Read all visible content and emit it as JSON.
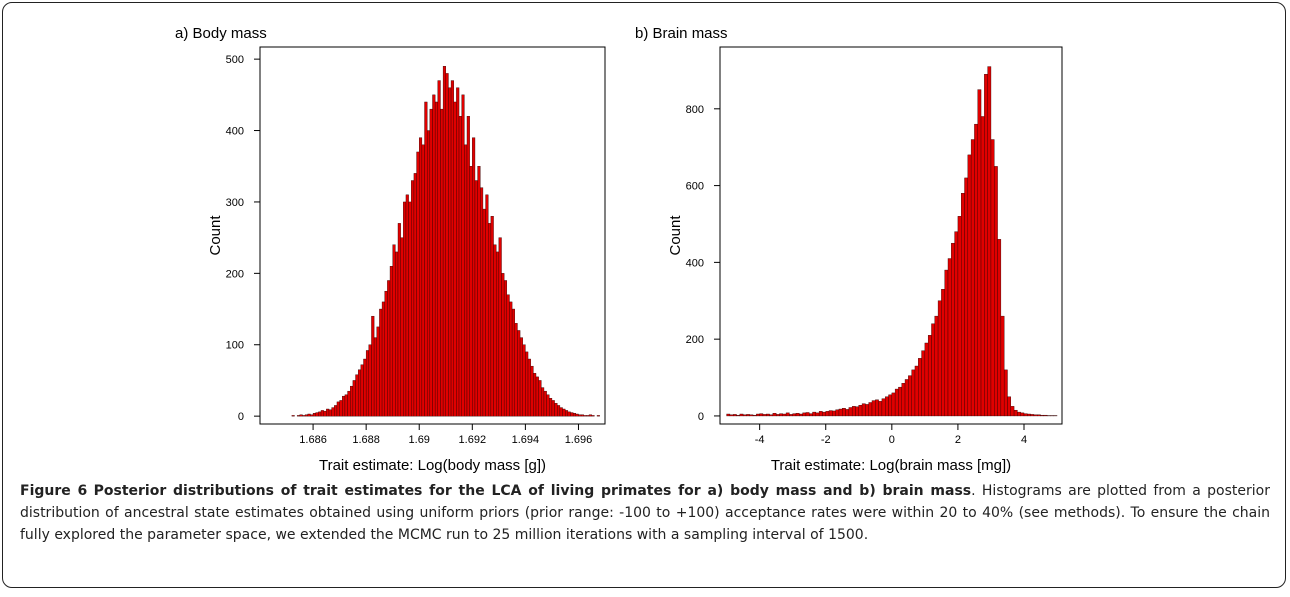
{
  "chart_data": [
    {
      "type": "histogram",
      "title": "a) Body mass",
      "xlabel": "Trait estimate: Log(body mass [g])",
      "ylabel": "Count",
      "color": "#e00000",
      "bins": [
        1.6852,
        1.6853,
        1.6854,
        1.6855,
        1.6856,
        1.6857,
        1.6858,
        1.6859,
        1.686,
        1.6861,
        1.6862,
        1.6863,
        1.6864,
        1.6865,
        1.6866,
        1.6867,
        1.6868,
        1.6869,
        1.687,
        1.6871,
        1.6872,
        1.6873,
        1.6874,
        1.6875,
        1.6876,
        1.6877,
        1.6878,
        1.6879,
        1.688,
        1.6881,
        1.6882,
        1.6883,
        1.6884,
        1.6885,
        1.6886,
        1.6887,
        1.6888,
        1.6889,
        1.689,
        1.6891,
        1.6892,
        1.6893,
        1.6894,
        1.6895,
        1.6896,
        1.6897,
        1.6898,
        1.6899,
        1.69,
        1.6901,
        1.6902,
        1.6903,
        1.6904,
        1.6905,
        1.6906,
        1.6907,
        1.6908,
        1.6909,
        1.691,
        1.6911,
        1.6912,
        1.6913,
        1.6914,
        1.6915,
        1.6916,
        1.6917,
        1.6918,
        1.6919,
        1.692,
        1.6921,
        1.6922,
        1.6923,
        1.6924,
        1.6925,
        1.6926,
        1.6927,
        1.6928,
        1.6929,
        1.693,
        1.6931,
        1.6932,
        1.6933,
        1.6934,
        1.6935,
        1.6936,
        1.6937,
        1.6938,
        1.6939,
        1.694,
        1.6941,
        1.6942,
        1.6943,
        1.6944,
        1.6945,
        1.6946,
        1.6947,
        1.6948,
        1.6949,
        1.695,
        1.6951,
        1.6952,
        1.6953,
        1.6954,
        1.6955,
        1.6956,
        1.6957,
        1.6958,
        1.6959,
        1.696,
        1.6961,
        1.6962,
        1.6963,
        1.6964,
        1.6965,
        1.6966,
        1.6967,
        1.6968
      ],
      "values": [
        1,
        0,
        1,
        2,
        1,
        2,
        3,
        2,
        4,
        5,
        6,
        8,
        7,
        10,
        9,
        12,
        15,
        20,
        22,
        28,
        30,
        35,
        42,
        50,
        58,
        65,
        72,
        80,
        92,
        100,
        140,
        110,
        125,
        150,
        160,
        175,
        190,
        210,
        240,
        230,
        270,
        250,
        300,
        310,
        300,
        330,
        340,
        370,
        390,
        380,
        440,
        400,
        430,
        450,
        440,
        470,
        430,
        490,
        480,
        460,
        470,
        440,
        460,
        420,
        450,
        380,
        420,
        350,
        390,
        330,
        350,
        320,
        290,
        310,
        270,
        280,
        240,
        230,
        250,
        200,
        190,
        170,
        160,
        150,
        130,
        120,
        110,
        100,
        90,
        80,
        70,
        60,
        55,
        50,
        40,
        35,
        30,
        25,
        22,
        18,
        15,
        12,
        10,
        8,
        6,
        5,
        4,
        3,
        2,
        2,
        1,
        1,
        2,
        1,
        0,
        1
      ],
      "xlim": [
        1.684,
        1.697
      ],
      "xticks": [
        1.686,
        1.688,
        1.69,
        1.692,
        1.694,
        1.696
      ],
      "ylim": [
        -11,
        517
      ],
      "yticks": [
        0,
        100,
        200,
        300,
        400,
        500
      ]
    },
    {
      "type": "histogram",
      "title": "b) Brain mass",
      "xlabel": "Trait estimate: Log(brain mass [mg])",
      "ylabel": "Count",
      "color": "#e00000",
      "bins": [
        -5,
        -4.9,
        -4.8,
        -4.7,
        -4.6,
        -4.5,
        -4.4,
        -4.3,
        -4.2,
        -4.1,
        -4,
        -3.9,
        -3.8,
        -3.7,
        -3.6,
        -3.5,
        -3.4,
        -3.3,
        -3.2,
        -3.1,
        -3,
        -2.9,
        -2.8,
        -2.7,
        -2.6,
        -2.5,
        -2.4,
        -2.3,
        -2.2,
        -2.1,
        -2,
        -1.9,
        -1.8,
        -1.7,
        -1.6,
        -1.5,
        -1.4,
        -1.3,
        -1.2,
        -1.1,
        -1,
        -0.9,
        -0.8,
        -0.7,
        -0.6,
        -0.5,
        -0.4,
        -0.3,
        -0.2,
        -0.1,
        0,
        0.1,
        0.2,
        0.3,
        0.4,
        0.5,
        0.6,
        0.7,
        0.8,
        0.9,
        1,
        1.1,
        1.2,
        1.3,
        1.4,
        1.5,
        1.6,
        1.7,
        1.8,
        1.9,
        2,
        2.1,
        2.2,
        2.3,
        2.4,
        2.5,
        2.6,
        2.7,
        2.8,
        2.9,
        3,
        3.1,
        3.2,
        3.3,
        3.4,
        3.5,
        3.6,
        3.7,
        3.8,
        3.9,
        4,
        4.1,
        4.2,
        4.3,
        4.4,
        4.5,
        4.6,
        4.7,
        4.8,
        4.9,
        5
      ],
      "values": [
        5,
        3,
        4,
        2,
        5,
        3,
        4,
        3,
        2,
        5,
        6,
        4,
        5,
        3,
        7,
        4,
        6,
        5,
        8,
        4,
        6,
        7,
        5,
        8,
        9,
        6,
        10,
        8,
        12,
        10,
        12,
        14,
        13,
        16,
        18,
        20,
        17,
        22,
        25,
        24,
        28,
        32,
        30,
        35,
        40,
        42,
        38,
        45,
        50,
        55,
        60,
        70,
        75,
        85,
        95,
        105,
        120,
        130,
        150,
        170,
        190,
        210,
        240,
        260,
        300,
        330,
        380,
        410,
        450,
        480,
        520,
        580,
        620,
        680,
        720,
        760,
        850,
        780,
        890,
        910,
        720,
        650,
        460,
        260,
        120,
        50,
        25,
        15,
        10,
        8,
        6,
        5,
        4,
        3,
        3,
        2,
        2,
        1,
        1,
        1
      ],
      "xlim": [
        -5.2,
        5.15
      ],
      "xticks": [
        -4,
        -2,
        0,
        2,
        4
      ],
      "ylim": [
        -21,
        961
      ],
      "yticks": [
        0,
        200,
        400,
        600,
        800
      ]
    }
  ],
  "caption": {
    "label": "Figure 6",
    "title": "Posterior distributions of trait estimates for the LCA of living primates for a) body mass and b) brain mass",
    "text": ". Histograms are plotted from a posterior distribution of ancestral state estimates obtained using uniform priors (prior range: -100 to +100) acceptance rates were within 20 to 40% (see methods). To ensure the chain fully explored the parameter space, we extended the MCMC run to 25 million iterations with a sampling interval of 1500."
  }
}
